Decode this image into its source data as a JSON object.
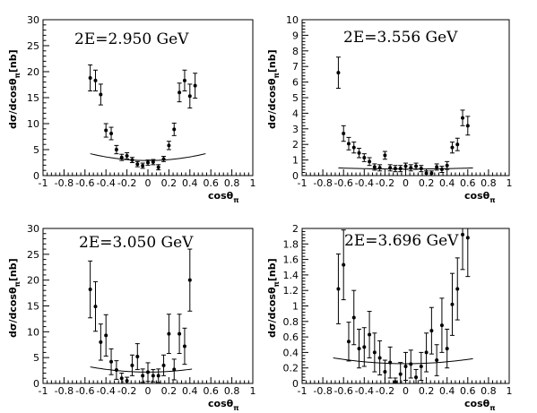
{
  "chart_data": [
    {
      "type": "scatter",
      "title": "2E=2.950 GeV",
      "xlabel": "cosθ",
      "xlabel_sub": "π",
      "ylabel": "dσ/dcosθ",
      "ylabel_sub": "π",
      "ylabel_suffix": "[nb]",
      "xlim": [
        -1,
        1
      ],
      "ylim": [
        0,
        30
      ],
      "xticks": [
        "-1",
        "-0.8",
        "-0.6",
        "-0.4",
        "-0.2",
        "0",
        "0.2",
        "0.4",
        "0.6",
        "0.8",
        "1"
      ],
      "yticks": [
        "0",
        "5",
        "10",
        "15",
        "20",
        "25",
        "30"
      ],
      "grid": false,
      "points": [
        {
          "x": -0.55,
          "y": 18.8,
          "err": 2.5
        },
        {
          "x": -0.5,
          "y": 18.3,
          "err": 2.0
        },
        {
          "x": -0.45,
          "y": 15.6,
          "err": 2.0
        },
        {
          "x": -0.4,
          "y": 8.7,
          "err": 1.3
        },
        {
          "x": -0.35,
          "y": 8.1,
          "err": 1.2
        },
        {
          "x": -0.3,
          "y": 5.0,
          "err": 0.8
        },
        {
          "x": -0.25,
          "y": 3.5,
          "err": 0.6
        },
        {
          "x": -0.2,
          "y": 3.8,
          "err": 0.6
        },
        {
          "x": -0.15,
          "y": 3.0,
          "err": 0.5
        },
        {
          "x": -0.1,
          "y": 2.2,
          "err": 0.5
        },
        {
          "x": -0.05,
          "y": 1.9,
          "err": 0.5
        },
        {
          "x": 0.0,
          "y": 2.5,
          "err": 0.5
        },
        {
          "x": 0.05,
          "y": 2.6,
          "err": 0.5
        },
        {
          "x": 0.1,
          "y": 1.6,
          "err": 0.5
        },
        {
          "x": 0.15,
          "y": 3.2,
          "err": 0.5
        },
        {
          "x": 0.2,
          "y": 5.8,
          "err": 0.8
        },
        {
          "x": 0.25,
          "y": 8.9,
          "err": 1.2
        },
        {
          "x": 0.3,
          "y": 16.0,
          "err": 1.8
        },
        {
          "x": 0.35,
          "y": 18.3,
          "err": 2.0
        },
        {
          "x": 0.4,
          "y": 15.3,
          "err": 2.3
        },
        {
          "x": 0.45,
          "y": 17.3,
          "err": 2.4
        }
      ],
      "fit_curve": {
        "a": 2.9,
        "b": 1.5,
        "xrange": [
          -0.55,
          0.55
        ]
      }
    },
    {
      "type": "scatter",
      "title": "2E=3.556 GeV",
      "xlabel": "cosθ",
      "xlabel_sub": "π",
      "ylabel": "dσ/dcosθ",
      "ylabel_sub": "π",
      "ylabel_suffix": "[nb]",
      "xlim": [
        -1,
        1
      ],
      "ylim": [
        0,
        10
      ],
      "xticks": [
        "-1",
        "-0.8",
        "-0.6",
        "-0.4",
        "-0.2",
        "0",
        "0.2",
        "0.4",
        "0.6",
        "0.8",
        "1"
      ],
      "yticks": [
        "0",
        "1",
        "2",
        "3",
        "4",
        "5",
        "6",
        "7",
        "8",
        "9",
        "10"
      ],
      "grid": false,
      "points": [
        {
          "x": -0.65,
          "y": 6.6,
          "err": 1.0
        },
        {
          "x": -0.6,
          "y": 2.7,
          "err": 0.5
        },
        {
          "x": -0.55,
          "y": 2.05,
          "err": 0.4
        },
        {
          "x": -0.5,
          "y": 1.8,
          "err": 0.35
        },
        {
          "x": -0.45,
          "y": 1.45,
          "err": 0.3
        },
        {
          "x": -0.4,
          "y": 1.15,
          "err": 0.25
        },
        {
          "x": -0.35,
          "y": 0.9,
          "err": 0.25
        },
        {
          "x": -0.3,
          "y": 0.55,
          "err": 0.2
        },
        {
          "x": -0.25,
          "y": 0.5,
          "err": 0.2
        },
        {
          "x": -0.2,
          "y": 1.3,
          "err": 0.25
        },
        {
          "x": -0.15,
          "y": 0.5,
          "err": 0.2
        },
        {
          "x": -0.1,
          "y": 0.45,
          "err": 0.2
        },
        {
          "x": -0.05,
          "y": 0.45,
          "err": 0.2
        },
        {
          "x": 0.0,
          "y": 0.6,
          "err": 0.2
        },
        {
          "x": 0.05,
          "y": 0.5,
          "err": 0.2
        },
        {
          "x": 0.1,
          "y": 0.6,
          "err": 0.2
        },
        {
          "x": 0.15,
          "y": 0.45,
          "err": 0.2
        },
        {
          "x": 0.2,
          "y": 0.15,
          "err": 0.15
        },
        {
          "x": 0.25,
          "y": 0.15,
          "err": 0.15
        },
        {
          "x": 0.3,
          "y": 0.55,
          "err": 0.2
        },
        {
          "x": 0.35,
          "y": 0.4,
          "err": 0.2
        },
        {
          "x": 0.4,
          "y": 0.65,
          "err": 0.25
        },
        {
          "x": 0.45,
          "y": 1.8,
          "err": 0.35
        },
        {
          "x": 0.5,
          "y": 2.0,
          "err": 0.4
        },
        {
          "x": 0.55,
          "y": 3.7,
          "err": 0.5
        },
        {
          "x": 0.6,
          "y": 3.2,
          "err": 0.6
        }
      ],
      "fit_curve": {
        "a": 0.42,
        "b": 0.4,
        "xrange": [
          -0.65,
          0.65
        ]
      }
    },
    {
      "type": "scatter",
      "title": "2E=3.050 GeV",
      "xlabel": "cosθ",
      "xlabel_sub": "π",
      "ylabel": "dσ/dcosθ",
      "ylabel_sub": "π",
      "ylabel_suffix": "[nb]",
      "xlim": [
        -1,
        1
      ],
      "ylim": [
        0,
        30
      ],
      "xticks": [
        "-1",
        "-0.8",
        "-0.6",
        "-0.4",
        "-0.2",
        "0",
        "0.2",
        "0.4",
        "0.6",
        "0.8",
        "1"
      ],
      "yticks": [
        "0",
        "5",
        "10",
        "15",
        "20",
        "25",
        "30"
      ],
      "grid": false,
      "points": [
        {
          "x": -0.55,
          "y": 18.2,
          "err": 5.5
        },
        {
          "x": -0.5,
          "y": 14.9,
          "err": 4.8
        },
        {
          "x": -0.45,
          "y": 8.0,
          "err": 3.5
        },
        {
          "x": -0.4,
          "y": 9.3,
          "err": 4.0
        },
        {
          "x": -0.35,
          "y": 4.2,
          "err": 2.5
        },
        {
          "x": -0.3,
          "y": 2.6,
          "err": 1.8
        },
        {
          "x": -0.25,
          "y": 1.0,
          "err": 1.0
        },
        {
          "x": -0.2,
          "y": 0.5,
          "err": 0.7
        },
        {
          "x": -0.15,
          "y": 3.5,
          "err": 2.0
        },
        {
          "x": -0.1,
          "y": 5.2,
          "err": 2.5
        },
        {
          "x": -0.05,
          "y": 1.5,
          "err": 1.3
        },
        {
          "x": 0.0,
          "y": 2.2,
          "err": 1.8
        },
        {
          "x": 0.05,
          "y": 1.5,
          "err": 1.2
        },
        {
          "x": 0.1,
          "y": 1.5,
          "err": 1.3
        },
        {
          "x": 0.15,
          "y": 3.5,
          "err": 2.0
        },
        {
          "x": 0.2,
          "y": 9.6,
          "err": 3.8
        },
        {
          "x": 0.25,
          "y": 2.7,
          "err": 2.0
        },
        {
          "x": 0.3,
          "y": 9.6,
          "err": 3.8
        },
        {
          "x": 0.35,
          "y": 7.2,
          "err": 3.5
        },
        {
          "x": 0.4,
          "y": 20.0,
          "err": 6.0
        }
      ],
      "fit_curve": {
        "a": 2.2,
        "b": 1.5,
        "xrange": [
          -0.55,
          0.42
        ]
      }
    },
    {
      "type": "scatter",
      "title": "2E=3.696 GeV",
      "xlabel": "cosθ",
      "xlabel_sub": "π",
      "ylabel": "dσ/dcosθ",
      "ylabel_sub": "π",
      "ylabel_suffix": "[nb]",
      "xlim": [
        -1,
        1
      ],
      "ylim": [
        0,
        2
      ],
      "xticks": [
        "-1",
        "-0.8",
        "-0.6",
        "-0.4",
        "-0.2",
        "0",
        "0.2",
        "0.4",
        "0.6",
        "0.8",
        "1"
      ],
      "yticks": [
        "0",
        "0.2",
        "0.4",
        "0.6",
        "0.8",
        "1",
        "1.2",
        "1.4",
        "1.6",
        "1.8",
        "2"
      ],
      "grid": false,
      "points": [
        {
          "x": -0.65,
          "y": 1.22,
          "err": 0.45
        },
        {
          "x": -0.6,
          "y": 1.53,
          "err": 0.45
        },
        {
          "x": -0.55,
          "y": 0.54,
          "err": 0.25
        },
        {
          "x": -0.5,
          "y": 0.85,
          "err": 0.35
        },
        {
          "x": -0.45,
          "y": 0.45,
          "err": 0.25
        },
        {
          "x": -0.4,
          "y": 0.47,
          "err": 0.25
        },
        {
          "x": -0.35,
          "y": 0.63,
          "err": 0.3
        },
        {
          "x": -0.3,
          "y": 0.4,
          "err": 0.25
        },
        {
          "x": -0.25,
          "y": 0.33,
          "err": 0.22
        },
        {
          "x": -0.2,
          "y": 0.15,
          "err": 0.15
        },
        {
          "x": -0.15,
          "y": 0.27,
          "err": 0.2
        },
        {
          "x": -0.1,
          "y": 0.02,
          "err": 0.05
        },
        {
          "x": -0.05,
          "y": 0.12,
          "err": 0.15
        },
        {
          "x": 0.0,
          "y": 0.22,
          "err": 0.18
        },
        {
          "x": 0.05,
          "y": 0.25,
          "err": 0.18
        },
        {
          "x": 0.1,
          "y": 0.08,
          "err": 0.1
        },
        {
          "x": 0.15,
          "y": 0.22,
          "err": 0.18
        },
        {
          "x": 0.2,
          "y": 0.4,
          "err": 0.25
        },
        {
          "x": 0.25,
          "y": 0.68,
          "err": 0.3
        },
        {
          "x": 0.3,
          "y": 0.3,
          "err": 0.2
        },
        {
          "x": 0.35,
          "y": 0.75,
          "err": 0.35
        },
        {
          "x": 0.4,
          "y": 0.45,
          "err": 0.25
        },
        {
          "x": 0.45,
          "y": 1.02,
          "err": 0.4
        },
        {
          "x": 0.5,
          "y": 1.22,
          "err": 0.4
        },
        {
          "x": 0.55,
          "y": 1.92,
          "err": 0.45
        },
        {
          "x": 0.6,
          "y": 1.88,
          "err": 0.5
        }
      ],
      "fit_curve": {
        "a": 0.255,
        "b": 0.6,
        "xrange": [
          -0.7,
          0.65
        ]
      }
    }
  ]
}
